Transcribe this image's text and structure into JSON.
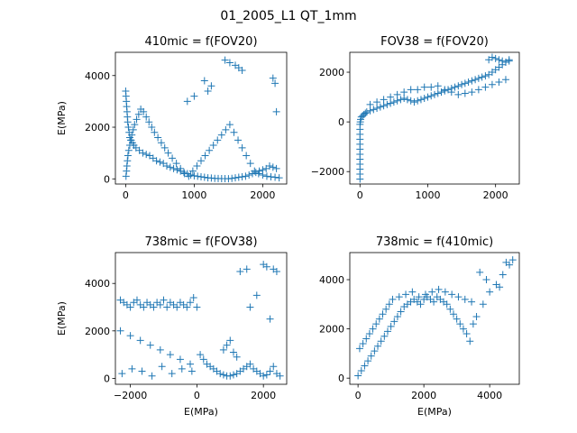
{
  "figure": {
    "title": "01_2005_L1 QT_1mm"
  },
  "chart_data": [
    {
      "type": "scatter",
      "title": "410mic = f(FOV20)",
      "xlabel": "",
      "ylabel": "E(MPa)",
      "xlim": [
        -150,
        2350
      ],
      "ylim": [
        -200,
        4900
      ],
      "xticks": [
        0,
        1000,
        2000
      ],
      "xticklabels": [
        "0",
        "1000",
        "2000"
      ],
      "yticks": [
        0,
        2000,
        4000
      ],
      "yticklabels": [
        "0",
        "2000",
        "4000"
      ],
      "marker": "+",
      "color": "#1f77b4",
      "series": [
        {
          "x": [
            0,
            5,
            10,
            15,
            20,
            25,
            30,
            40,
            50,
            60,
            80,
            100,
            120,
            150,
            200,
            250,
            300,
            350,
            400,
            450,
            500,
            550,
            600,
            650,
            700,
            750,
            800,
            850,
            900,
            950,
            1000,
            1050,
            1100,
            1150,
            1200,
            1250,
            1300,
            1350,
            1400,
            1450,
            1500,
            1550,
            1600,
            1650,
            1700,
            1750,
            1800,
            1850,
            1900,
            1950,
            2000,
            2050,
            2100,
            2150,
            2200,
            5,
            12,
            18,
            25,
            33,
            45,
            60,
            75,
            90,
            110,
            130,
            160,
            190,
            220,
            260,
            300,
            340,
            380,
            420,
            470,
            520,
            570,
            620,
            680,
            740,
            800,
            860,
            920,
            980,
            1040,
            1100,
            1160,
            1220,
            1280,
            1340,
            1400,
            1460,
            1520,
            1580,
            1640,
            1700,
            1760,
            1820,
            1880,
            1940,
            2000,
            2060,
            2120,
            2180,
            2240,
            1450,
            1520,
            1600,
            1650,
            1700,
            1150,
            1250,
            2150,
            2180,
            2200,
            900,
            1000,
            1200
          ],
          "y": [
            3400,
            3200,
            3000,
            2800,
            2600,
            2400,
            2200,
            2000,
            1800,
            1600,
            1500,
            1400,
            1300,
            1200,
            1100,
            1000,
            950,
            900,
            800,
            700,
            650,
            600,
            500,
            450,
            400,
            350,
            300,
            250,
            200,
            150,
            120,
            100,
            80,
            60,
            40,
            30,
            20,
            15,
            10,
            8,
            5,
            20,
            40,
            60,
            80,
            100,
            150,
            200,
            250,
            300,
            350,
            400,
            500,
            450,
            400,
            100,
            300,
            500,
            700,
            900,
            1100,
            1300,
            1500,
            1700,
            1900,
            2100,
            2300,
            2500,
            2700,
            2600,
            2400,
            2200,
            2000,
            1800,
            1600,
            1400,
            1200,
            1000,
            800,
            600,
            400,
            200,
            100,
            300,
            500,
            700,
            900,
            1100,
            1300,
            1500,
            1700,
            1900,
            2100,
            1800,
            1500,
            1200,
            900,
            600,
            300,
            200,
            150,
            100,
            80,
            60,
            40,
            4600,
            4500,
            4400,
            4300,
            4200,
            3800,
            3600,
            3900,
            3700,
            2600,
            3000,
            3200,
            3400
          ]
        }
      ]
    },
    {
      "type": "scatter",
      "title": "FOV38 = f(FOV20)",
      "xlabel": "",
      "ylabel": "",
      "xlim": [
        -150,
        2350
      ],
      "ylim": [
        -2500,
        2800
      ],
      "xticks": [
        0,
        1000,
        2000
      ],
      "xticklabels": [
        "0",
        "1000",
        "2000"
      ],
      "yticks": [
        -2000,
        0,
        2000
      ],
      "yticklabels": [
        "−2000",
        "0",
        "2000"
      ],
      "marker": "+",
      "color": "#1f77b4",
      "series": [
        {
          "x": [
            0,
            0,
            0,
            0,
            0,
            0,
            0,
            0,
            0,
            0,
            0,
            0,
            5,
            10,
            20,
            40,
            60,
            80,
            100,
            150,
            200,
            250,
            300,
            350,
            400,
            450,
            500,
            550,
            600,
            650,
            700,
            750,
            800,
            850,
            900,
            950,
            1000,
            1050,
            1100,
            1150,
            1200,
            1250,
            1300,
            1350,
            1400,
            1450,
            1500,
            1550,
            1600,
            1650,
            1700,
            1750,
            1800,
            1850,
            1900,
            1950,
            2000,
            2050,
            2100,
            2150,
            2200,
            150,
            250,
            350,
            450,
            550,
            650,
            750,
            850,
            950,
            1050,
            1150,
            1250,
            1350,
            1450,
            1550,
            1650,
            1750,
            1850,
            1950,
            2050,
            2150,
            1900,
            1950,
            2000,
            2050,
            2100,
            2150,
            2200
          ],
          "y": [
            -2300,
            -2100,
            -1900,
            -1700,
            -1500,
            -1300,
            -1100,
            -900,
            -700,
            -500,
            -300,
            -100,
            0,
            100,
            200,
            250,
            300,
            350,
            400,
            450,
            500,
            550,
            600,
            650,
            700,
            750,
            800,
            850,
            900,
            950,
            900,
            850,
            800,
            850,
            900,
            950,
            1000,
            1050,
            1100,
            1150,
            1200,
            1250,
            1300,
            1350,
            1400,
            1450,
            1500,
            1550,
            1600,
            1650,
            1700,
            1750,
            1800,
            1850,
            1900,
            2000,
            2100,
            2200,
            2300,
            2400,
            2500,
            700,
            800,
            900,
            1000,
            1100,
            1200,
            1300,
            1300,
            1400,
            1400,
            1450,
            1300,
            1200,
            1100,
            1150,
            1200,
            1300,
            1400,
            1500,
            1600,
            1700,
            2500,
            2600,
            2550,
            2500,
            2450,
            2400,
            2450
          ]
        }
      ]
    },
    {
      "type": "scatter",
      "title": "738mic = f(FOV38)",
      "xlabel": "E(MPa)",
      "ylabel": "E(MPa)",
      "xlim": [
        -2450,
        2700
      ],
      "ylim": [
        -250,
        5300
      ],
      "xticks": [
        -2000,
        0,
        2000
      ],
      "xticklabels": [
        "−2000",
        "0",
        "2000"
      ],
      "yticks": [
        0,
        2000,
        4000
      ],
      "yticklabels": [
        "0",
        "2000",
        "4000"
      ],
      "marker": "+",
      "color": "#1f77b4",
      "series": [
        {
          "x": [
            -2300,
            -2200,
            -2100,
            -2000,
            -1900,
            -1800,
            -1700,
            -1600,
            -1500,
            -1400,
            -1300,
            -1200,
            -1100,
            -1000,
            -900,
            -800,
            -700,
            -600,
            -500,
            -400,
            -300,
            -200,
            -100,
            0,
            -2300,
            -2000,
            -1700,
            -1400,
            -1100,
            -800,
            -500,
            -200,
            -2250,
            -1950,
            -1650,
            -1350,
            -1050,
            -750,
            -450,
            -150,
            100,
            200,
            300,
            400,
            500,
            600,
            700,
            800,
            900,
            1000,
            1100,
            1200,
            1300,
            1400,
            1500,
            1600,
            1700,
            1800,
            1900,
            2000,
            2100,
            2200,
            2300,
            2400,
            2500,
            1300,
            1500,
            2000,
            2100,
            2300,
            2400,
            1600,
            1800,
            2200,
            800,
            900,
            1000,
            1100,
            1200
          ],
          "y": [
            3300,
            3200,
            3100,
            3000,
            3200,
            3300,
            3100,
            3000,
            3200,
            3100,
            3000,
            3200,
            3100,
            3300,
            3000,
            3200,
            3100,
            3000,
            3200,
            3100,
            3000,
            3200,
            3400,
            3000,
            2000,
            1800,
            1600,
            1400,
            1200,
            1000,
            800,
            600,
            200,
            400,
            300,
            100,
            500,
            200,
            400,
            300,
            1000,
            800,
            600,
            500,
            400,
            300,
            200,
            150,
            100,
            100,
            150,
            200,
            300,
            400,
            500,
            600,
            400,
            300,
            200,
            100,
            150,
            300,
            500,
            200,
            100,
            4500,
            4600,
            4800,
            4700,
            4600,
            4500,
            3000,
            3500,
            2500,
            1200,
            1400,
            1600,
            1100,
            900
          ]
        }
      ]
    },
    {
      "type": "scatter",
      "title": "738mic = f(410mic)",
      "xlabel": "E(MPa)",
      "ylabel": "",
      "xlim": [
        -250,
        4900
      ],
      "ylim": [
        -250,
        5100
      ],
      "xticks": [
        0,
        2000,
        4000
      ],
      "xticklabels": [
        "0",
        "2000",
        "4000"
      ],
      "yticks": [
        0,
        2000,
        4000
      ],
      "yticklabels": [
        "0",
        "2000",
        "4000"
      ],
      "marker": "+",
      "color": "#1f77b4",
      "series": [
        {
          "x": [
            0,
            100,
            200,
            300,
            400,
            500,
            600,
            700,
            800,
            900,
            1000,
            1100,
            1200,
            1300,
            1400,
            1500,
            1600,
            1700,
            1800,
            1900,
            2000,
            2100,
            2200,
            2300,
            2400,
            2500,
            2600,
            2700,
            2800,
            2900,
            3000,
            3100,
            3200,
            3300,
            3400,
            50,
            150,
            250,
            350,
            450,
            550,
            650,
            750,
            850,
            950,
            1050,
            1250,
            1450,
            1650,
            1850,
            2050,
            2250,
            2450,
            2650,
            2850,
            3050,
            3250,
            3450,
            3600,
            3800,
            4000,
            4200,
            4400,
            4600,
            4700,
            4500,
            4300,
            3900,
            3700,
            3500
          ],
          "y": [
            100,
            300,
            500,
            700,
            900,
            1100,
            1300,
            1500,
            1700,
            1900,
            2100,
            2300,
            2500,
            2700,
            2900,
            3000,
            3100,
            3200,
            3100,
            3000,
            3200,
            3300,
            3200,
            3100,
            3300,
            3200,
            3100,
            3000,
            2800,
            2600,
            2400,
            2200,
            2000,
            1800,
            1500,
            1200,
            1400,
            1600,
            1800,
            2000,
            2200,
            2400,
            2600,
            2800,
            3000,
            3200,
            3300,
            3400,
            3500,
            3300,
            3400,
            3500,
            3600,
            3500,
            3400,
            3300,
            3200,
            3100,
            2500,
            3000,
            3500,
            3800,
            4200,
            4600,
            4800,
            4700,
            3700,
            4000,
            4300,
            2200
          ]
        }
      ]
    }
  ]
}
